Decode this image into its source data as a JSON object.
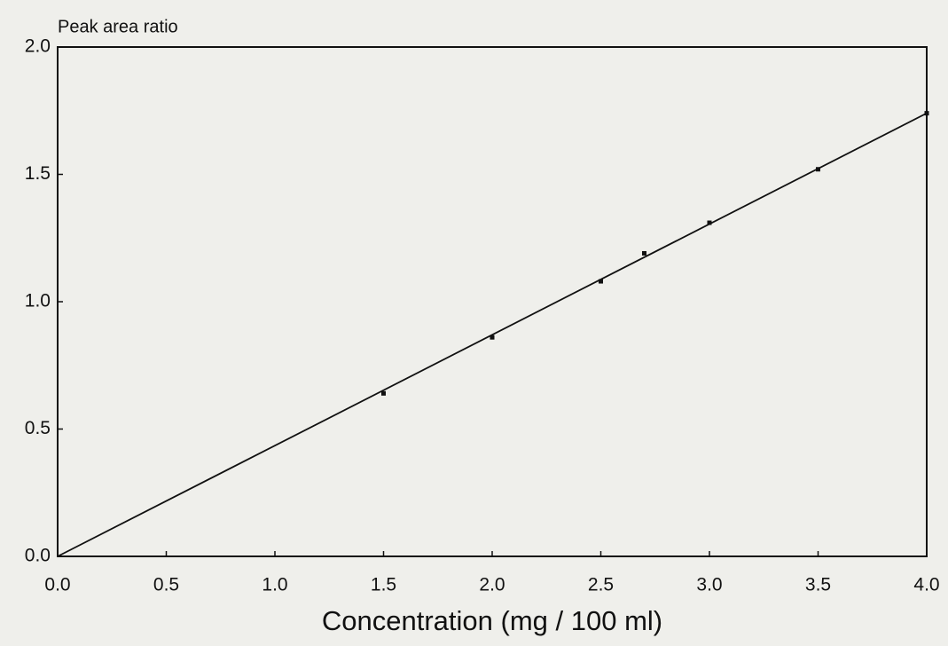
{
  "chart_data": {
    "type": "scatter",
    "y_label": "Peak area ratio",
    "x_label": "Concentration (mg / 100 ml)",
    "series": [
      {
        "type": "scatter",
        "color": "#111111",
        "x": [
          1.5,
          2.0,
          2.5,
          2.7,
          3.0,
          3.5,
          4.0
        ],
        "values": [
          0.64,
          0.86,
          1.08,
          1.19,
          1.31,
          1.52,
          1.74
        ]
      },
      {
        "type": "line",
        "color": "#111111",
        "x": [
          0,
          4
        ],
        "values": [
          0,
          1.74
        ]
      }
    ],
    "xlim": [
      0,
      4
    ],
    "ylim": [
      0,
      2
    ],
    "xticks": [
      {
        "value": 0,
        "label": "0.0"
      },
      0.5,
      {
        "value": 1,
        "label": "1.0"
      },
      1.5,
      {
        "value": 2,
        "label": "2.0"
      },
      2.5,
      {
        "value": 3,
        "label": "3.0"
      },
      3.5,
      {
        "value": 4,
        "label": "4.0"
      }
    ],
    "yticks": [
      {
        "value": 0,
        "label": "0.0"
      },
      0.5,
      {
        "value": 1,
        "label": "1.0"
      },
      1.5,
      {
        "value": 2,
        "label": "2.0"
      }
    ],
    "grid": false
  }
}
